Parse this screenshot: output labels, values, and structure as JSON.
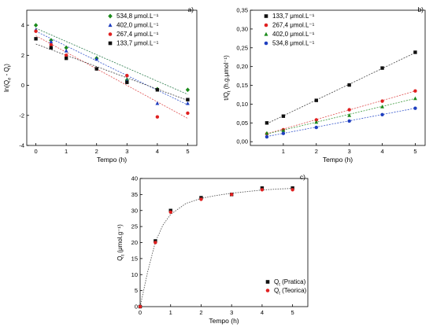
{
  "chart_data": [
    {
      "panel_label": "a)",
      "type": "scatter",
      "xlabel": "Tempo (h)",
      "ylabel": "ln(Q<sub>e</sub> - Q<sub>t</sub>)",
      "ylabel_text": "ln(Qe - Qt)",
      "xlim": [
        -0.3,
        5.3
      ],
      "ylim": [
        -4,
        5
      ],
      "xticks": [
        0,
        1,
        2,
        3,
        4,
        5
      ],
      "yticks": [
        -4,
        -2,
        0,
        2,
        4
      ],
      "legend_position": "top-right",
      "series": [
        {
          "name": "534,8 μmol.L⁻¹",
          "marker": "diamond",
          "color": "#1a8a1a",
          "line_color": "#2e7d4f",
          "x": [
            0,
            0.5,
            1,
            2,
            3,
            4,
            5
          ],
          "y": [
            4.0,
            3.0,
            2.5,
            1.8,
            0.35,
            -0.25,
            -0.3
          ],
          "fit": [
            3.8,
            -0.88
          ]
        },
        {
          "name": "402,0 μmol.L⁻¹",
          "marker": "triangle",
          "color": "#1f3fbf",
          "line_color": "#3355cc",
          "x": [
            0,
            0.5,
            1,
            2,
            3,
            4,
            5
          ],
          "y": [
            3.7,
            2.9,
            2.3,
            1.75,
            0.3,
            -1.2,
            -1.2
          ],
          "fit": [
            3.6,
            -0.98
          ]
        },
        {
          "name": "267,4 μmol.L⁻¹",
          "marker": "circle",
          "color": "#e02020",
          "line_color": "#e05050",
          "x": [
            0,
            0.5,
            1,
            2,
            3,
            4,
            5
          ],
          "y": [
            3.6,
            2.7,
            2.0,
            1.1,
            0.65,
            -2.1,
            -1.85
          ],
          "fit": [
            3.3,
            -1.1
          ]
        },
        {
          "name": "133,7 μmol.L⁻¹",
          "marker": "square",
          "color": "#111111",
          "line_color": "#444444",
          "x": [
            0,
            0.5,
            1,
            2,
            3,
            4,
            5
          ],
          "y": [
            3.1,
            2.5,
            1.8,
            1.1,
            0.2,
            -0.3,
            -0.95
          ],
          "fit": [
            2.75,
            -0.75
          ]
        }
      ]
    },
    {
      "panel_label": "b)",
      "type": "scatter",
      "xlabel": "Tempo (h)",
      "ylabel": "t/Q<sub>t</sub> (h.g.μmol⁻¹)",
      "ylabel_text": "t/Qt (h.g.μmol⁻¹)",
      "xlim": [
        0,
        5.3
      ],
      "ylim": [
        -0.01,
        0.35
      ],
      "xticks": [
        1,
        2,
        3,
        4,
        5
      ],
      "yticks": [
        0.0,
        0.05,
        0.1,
        0.15,
        0.2,
        0.25,
        0.3,
        0.35
      ],
      "ytick_labels": [
        "0,00",
        "0,05",
        "0,10",
        "0,15",
        "0,20",
        "0,25",
        "0,30",
        "0,35"
      ],
      "legend_position": "top-left",
      "series": [
        {
          "name": "133,7 μmol.L⁻¹",
          "marker": "square",
          "color": "#111111",
          "line_color": "#444444",
          "x": [
            0.5,
            1,
            2,
            3,
            4,
            5
          ],
          "y": [
            0.05,
            0.068,
            0.11,
            0.151,
            0.196,
            0.238
          ],
          "fit": [
            0.027,
            0.042
          ]
        },
        {
          "name": "267,4 μmol.L⁻¹",
          "marker": "circle",
          "color": "#e02020",
          "line_color": "#e05050",
          "x": [
            0.5,
            1,
            2,
            3,
            4,
            5
          ],
          "y": [
            0.021,
            0.032,
            0.058,
            0.085,
            0.108,
            0.135
          ],
          "fit": [
            0.0085,
            0.0253
          ]
        },
        {
          "name": "402,0 μmol.L⁻¹",
          "marker": "triangle",
          "color": "#1a8a1a",
          "line_color": "#3a9a3a",
          "x": [
            0.5,
            1,
            2,
            3,
            4,
            5
          ],
          "y": [
            0.023,
            0.03,
            0.052,
            0.07,
            0.093,
            0.115
          ],
          "fit": [
            0.01,
            0.021
          ]
        },
        {
          "name": "534,8 μmol.L⁻¹",
          "marker": "circle",
          "color": "#1f3fbf",
          "line_color": "#3355cc",
          "x": [
            0.5,
            1,
            2,
            3,
            4,
            5
          ],
          "y": [
            0.013,
            0.022,
            0.038,
            0.055,
            0.072,
            0.089
          ],
          "fit": [
            0.0055,
            0.0167
          ]
        }
      ]
    },
    {
      "panel_label": "c)",
      "type": "scatter",
      "xlabel": "Tempo (h)",
      "ylabel": "Q<sub>t</sub> (μmol.g⁻¹)",
      "ylabel_text": "Qt (μmol.g⁻¹)",
      "xlim": [
        0,
        5.5
      ],
      "ylim": [
        0,
        40
      ],
      "xticks": [
        0,
        1,
        2,
        3,
        4,
        5
      ],
      "yticks": [
        0,
        5,
        10,
        15,
        20,
        25,
        30,
        35,
        40
      ],
      "legend_position": "bottom-right",
      "series": [
        {
          "name": "Q<sub>t</sub> (Pratica)",
          "name_text": "Qt (Pratica)",
          "marker": "square",
          "color": "#111111",
          "x": [
            0,
            0.5,
            1,
            2,
            3,
            4,
            5
          ],
          "y": [
            0,
            20.5,
            30.0,
            34.0,
            35.0,
            37.0,
            37.0
          ]
        },
        {
          "name": "Q<sub>t</sub> (Teorica)",
          "name_text": "Qt (Teorica)",
          "marker": "circle",
          "color": "#e02020",
          "x": [
            0,
            0.5,
            1,
            2,
            3,
            4,
            5
          ],
          "y": [
            0,
            20.0,
            29.5,
            33.5,
            35.0,
            36.5,
            36.5
          ]
        }
      ],
      "curve": {
        "x": [
          0,
          0.25,
          0.5,
          0.75,
          1,
          1.5,
          2,
          2.5,
          3,
          3.5,
          4,
          4.5,
          5
        ],
        "y": [
          0,
          11,
          20.2,
          25.5,
          28.8,
          32.2,
          33.8,
          34.7,
          35.4,
          35.9,
          36.4,
          36.7,
          36.9
        ]
      }
    }
  ]
}
